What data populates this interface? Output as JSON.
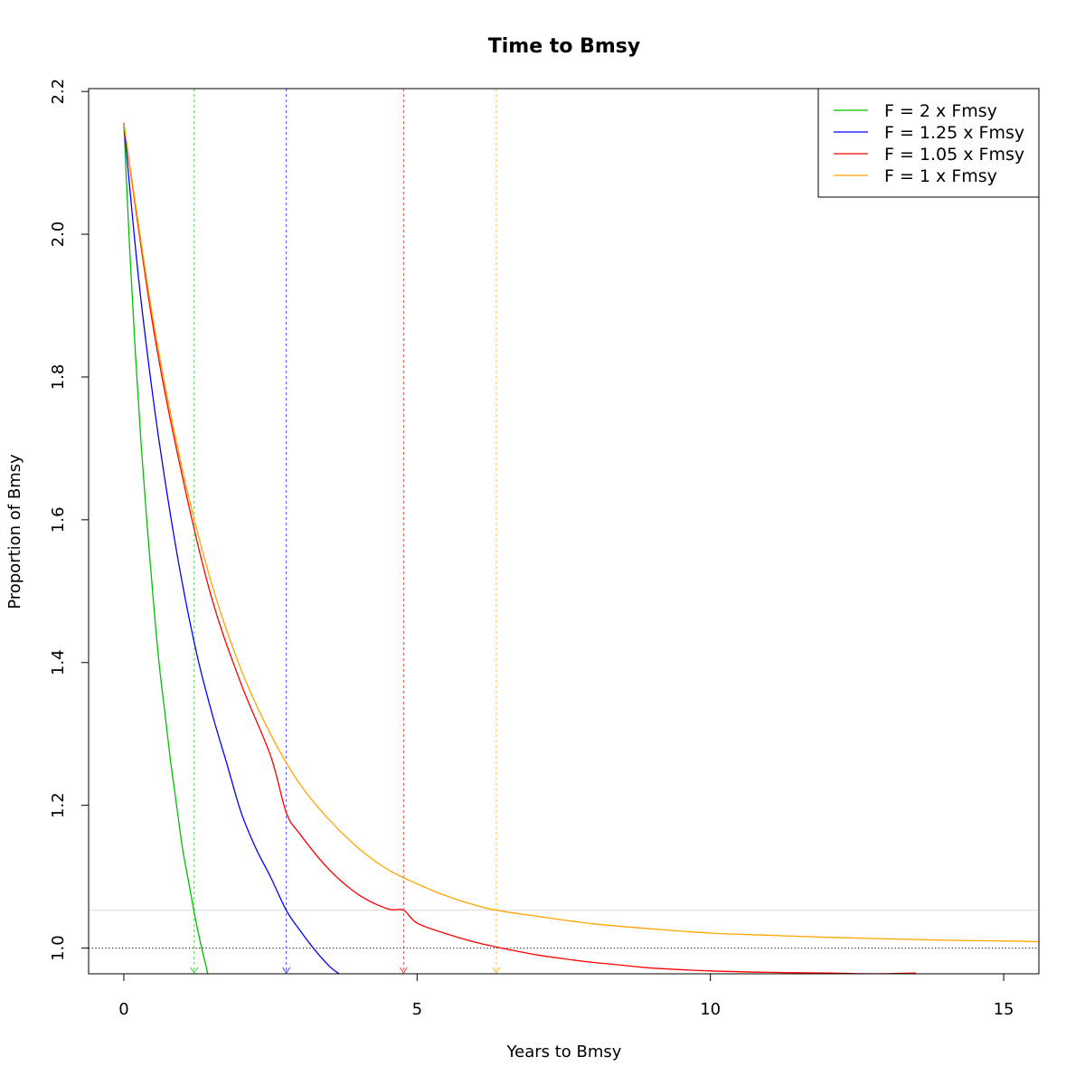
{
  "chart_data": {
    "type": "line",
    "title": "Time to Bmsy",
    "xlabel": "Years to Bmsy",
    "ylabel": "Proportion of Bmsy",
    "xlim": [
      -0.6,
      15.6
    ],
    "ylim": [
      0.964,
      2.204
    ],
    "xticks": [
      0,
      5,
      10,
      15
    ],
    "yticks": [
      1.0,
      1.2,
      1.4,
      1.6,
      1.8,
      2.0,
      2.2
    ],
    "grid": false,
    "legend_position": "top-right",
    "reference_lines": {
      "horizontal": [
        {
          "y": 1.0,
          "color": "#000000",
          "style": "dotted"
        },
        {
          "y": 1.053,
          "color": "#d9d9d9",
          "style": "solid"
        }
      ]
    },
    "series": [
      {
        "name": "F = 2 x Fmsy",
        "color": "#00c000",
        "x": [
          0,
          0.1,
          0.2,
          0.3,
          0.4,
          0.5,
          0.6,
          0.7,
          0.8,
          0.9,
          1.0,
          1.1,
          1.2,
          1.3,
          1.4,
          1.43
        ],
        "y": [
          2.156,
          1.98,
          1.83,
          1.7,
          1.59,
          1.49,
          1.4,
          1.33,
          1.26,
          1.2,
          1.14,
          1.095,
          1.05,
          1.01,
          0.975,
          0.964
        ],
        "marker_x": 1.2
      },
      {
        "name": "F = 1.25 x Fmsy",
        "color": "#0000ff",
        "x": [
          0,
          0.25,
          0.5,
          0.75,
          1.0,
          1.25,
          1.5,
          1.75,
          2.0,
          2.25,
          2.5,
          2.77,
          3.0,
          3.25,
          3.5,
          3.67
        ],
        "y": [
          2.156,
          1.94,
          1.77,
          1.63,
          1.51,
          1.41,
          1.33,
          1.26,
          1.19,
          1.14,
          1.1,
          1.053,
          1.025,
          0.998,
          0.975,
          0.964
        ],
        "marker_x": 2.77
      },
      {
        "name": "F = 1.05 x Fmsy",
        "color": "#ff0000",
        "x": [
          0,
          0.5,
          1.0,
          1.5,
          2.0,
          2.5,
          2.77,
          3.0,
          3.5,
          4.0,
          4.5,
          4.77,
          5.0,
          5.5,
          6.0,
          6.5,
          7.0,
          7.5,
          8.0,
          8.5,
          9.0,
          10.0,
          11.0,
          12.0,
          12.8,
          13.5
        ],
        "y": [
          2.156,
          1.87,
          1.66,
          1.49,
          1.37,
          1.27,
          1.19,
          1.16,
          1.11,
          1.075,
          1.055,
          1.053,
          1.035,
          1.02,
          1.008,
          0.999,
          0.991,
          0.985,
          0.98,
          0.976,
          0.972,
          0.968,
          0.966,
          0.965,
          0.964,
          0.965
        ],
        "marker_x": 4.77
      },
      {
        "name": "F = 1 x Fmsy",
        "color": "#ffa500",
        "x": [
          0,
          0.5,
          1.0,
          1.5,
          2.0,
          2.5,
          3.0,
          3.5,
          4.0,
          4.5,
          5.0,
          5.5,
          6.0,
          6.35,
          7.0,
          8.0,
          9.0,
          10.0,
          11.0,
          12.0,
          13.0,
          14.0,
          15.0,
          15.6
        ],
        "y": [
          2.156,
          1.88,
          1.67,
          1.51,
          1.39,
          1.3,
          1.23,
          1.18,
          1.14,
          1.11,
          1.09,
          1.073,
          1.06,
          1.053,
          1.045,
          1.034,
          1.027,
          1.021,
          1.018,
          1.015,
          1.013,
          1.011,
          1.01,
          1.009
        ],
        "marker_x": 6.35
      }
    ]
  }
}
